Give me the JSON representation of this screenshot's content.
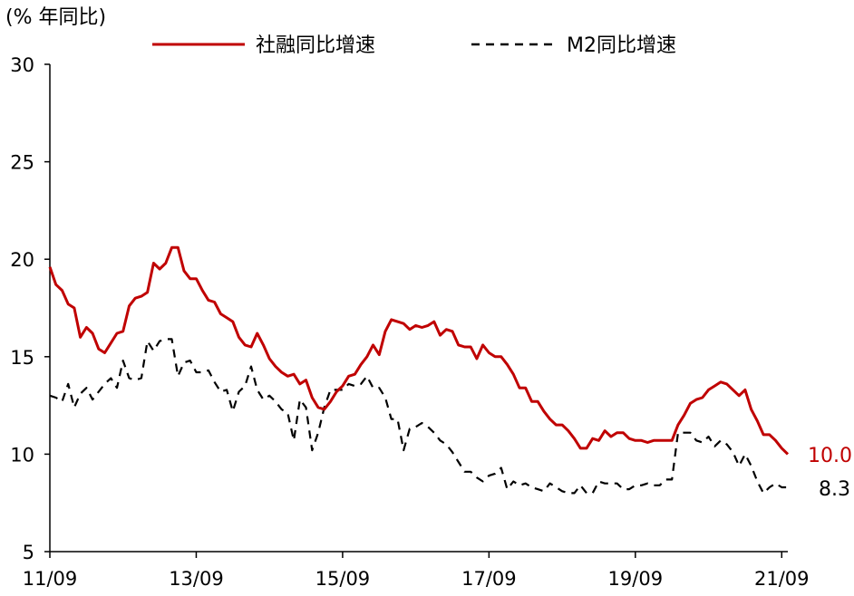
{
  "chart_data": {
    "type": "line",
    "unit_label": "(% 年同比)",
    "ylim": [
      5,
      30
    ],
    "y_ticks": [
      5,
      10,
      15,
      20,
      25,
      30
    ],
    "x_tick_labels": [
      "11/09",
      "13/09",
      "15/09",
      "17/09",
      "19/09",
      "21/09"
    ],
    "x_tick_months": [
      0,
      24,
      48,
      72,
      96,
      120
    ],
    "grid": false,
    "legend_position": "top",
    "series": [
      {
        "name": "社融同比增速",
        "color": "#c00000",
        "style": "solid",
        "end_label": "10.0",
        "values": [
          19.6,
          18.7,
          18.4,
          17.7,
          17.5,
          16.0,
          16.5,
          16.2,
          15.4,
          15.2,
          15.7,
          16.2,
          16.3,
          17.6,
          18.0,
          18.1,
          18.3,
          19.8,
          19.5,
          19.8,
          20.6,
          20.6,
          19.4,
          19.0,
          19.0,
          18.4,
          17.9,
          17.8,
          17.2,
          17.0,
          16.8,
          16.0,
          15.6,
          15.5,
          16.2,
          15.6,
          14.9,
          14.5,
          14.2,
          14.0,
          14.1,
          13.6,
          13.8,
          12.9,
          12.4,
          12.3,
          12.7,
          13.2,
          13.5,
          14.0,
          14.1,
          14.6,
          15.0,
          15.6,
          15.1,
          16.3,
          16.9,
          16.8,
          16.7,
          16.4,
          16.6,
          16.5,
          16.6,
          16.8,
          16.1,
          16.4,
          16.3,
          15.6,
          15.5,
          15.5,
          14.9,
          15.6,
          15.2,
          15.0,
          15.0,
          14.6,
          14.1,
          13.4,
          13.4,
          12.7,
          12.7,
          12.2,
          11.8,
          11.5,
          11.5,
          11.2,
          10.8,
          10.3,
          10.3,
          10.8,
          10.7,
          11.2,
          10.9,
          11.1,
          11.1,
          10.8,
          10.7,
          10.7,
          10.6,
          10.7,
          10.7,
          10.7,
          10.7,
          11.5,
          12.0,
          12.6,
          12.8,
          12.9,
          13.3,
          13.5,
          13.7,
          13.6,
          13.3,
          13.0,
          13.3,
          12.3,
          11.7,
          11.0,
          11.0,
          10.7,
          10.3,
          10.0
        ]
      },
      {
        "name": "M2同比增速",
        "color": "#000000",
        "style": "dashed",
        "end_label": "8.3",
        "values": [
          13.0,
          12.9,
          12.7,
          13.6,
          12.4,
          13.1,
          13.4,
          12.8,
          13.2,
          13.6,
          13.9,
          13.4,
          14.8,
          13.9,
          13.8,
          13.9,
          15.8,
          15.3,
          15.8,
          15.9,
          15.9,
          14.0,
          14.7,
          14.8,
          14.2,
          14.2,
          14.3,
          13.7,
          13.2,
          13.3,
          12.2,
          13.2,
          13.5,
          14.5,
          13.3,
          12.8,
          13.0,
          12.7,
          12.3,
          12.1,
          10.7,
          12.8,
          12.4,
          10.2,
          11.1,
          12.4,
          13.3,
          13.3,
          13.3,
          13.6,
          13.5,
          13.6,
          14.0,
          13.4,
          13.4,
          12.9,
          11.8,
          11.8,
          10.2,
          11.3,
          11.4,
          11.6,
          11.4,
          11.1,
          10.7,
          10.5,
          10.1,
          9.6,
          9.1,
          9.1,
          8.8,
          8.6,
          8.9,
          9.0,
          9.3,
          8.2,
          8.6,
          8.4,
          8.5,
          8.3,
          8.2,
          8.1,
          8.5,
          8.3,
          8.1,
          8.0,
          8.0,
          8.4,
          8.0,
          8.0,
          8.6,
          8.5,
          8.5,
          8.5,
          8.2,
          8.2,
          8.4,
          8.4,
          8.5,
          8.4,
          8.4,
          8.7,
          8.7,
          11.1,
          11.1,
          11.1,
          10.7,
          10.6,
          10.9,
          10.4,
          10.7,
          10.5,
          10.1,
          9.4,
          10.0,
          9.4,
          8.6,
          8.0,
          8.3,
          8.5,
          8.3,
          8.3
        ]
      }
    ]
  }
}
